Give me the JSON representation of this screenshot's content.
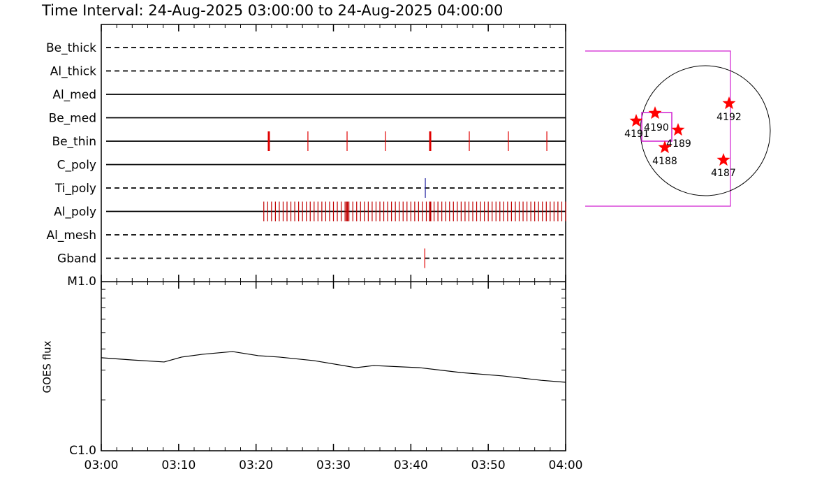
{
  "title": "Time Interval: 24-Aug-2025 03:00:00 to 24-Aug-2025 04:00:00",
  "chart_data": [
    {
      "type": "timeline",
      "xlim": [
        0,
        60
      ],
      "xticks": [
        0,
        10,
        20,
        30,
        40,
        50,
        60
      ],
      "minor_xticks": [
        2,
        4,
        6,
        8,
        12,
        14,
        16,
        18,
        22,
        24,
        26,
        28,
        32,
        34,
        36,
        38,
        42,
        44,
        46,
        48,
        52,
        54,
        56,
        58
      ],
      "rows": [
        {
          "name": "Be_thick",
          "style": "dashed",
          "color": "#000000",
          "events": [],
          "wide_events": []
        },
        {
          "name": "Al_thick",
          "style": "dashed",
          "color": "#000000",
          "events": [],
          "wide_events": []
        },
        {
          "name": "Al_med",
          "style": "solid",
          "color": "#000000",
          "events": [],
          "wide_events": []
        },
        {
          "name": "Be_med",
          "style": "solid",
          "color": "#000000",
          "events": [],
          "wide_events": []
        },
        {
          "name": "Be_thin",
          "style": "solid",
          "color": "#e00000",
          "events": [
            26.7,
            31.76,
            36.72,
            47.55,
            52.6,
            57.57
          ],
          "wide_events": [
            21.65,
            42.5
          ]
        },
        {
          "name": "C_poly",
          "style": "solid",
          "color": "#000000",
          "events": [],
          "wide_events": []
        },
        {
          "name": "Ti_poly",
          "style": "dashed",
          "color": "#2020a0",
          "events": [
            41.87
          ],
          "wide_events": []
        },
        {
          "name": "Al_poly",
          "style": "solid",
          "color": "#c00000",
          "events": [
            21,
            21.5,
            22,
            22.5,
            23,
            23.5,
            24,
            24.5,
            25,
            25.5,
            26,
            26.5,
            27,
            27.5,
            28,
            28.5,
            29,
            29.5,
            30,
            30.5,
            31,
            31.5,
            32,
            32.5,
            33,
            33.5,
            34,
            34.5,
            35,
            35.5,
            36,
            36.5,
            37,
            37.5,
            38,
            38.5,
            39,
            39.5,
            40,
            40.5,
            41,
            41.5,
            42,
            42.5,
            43,
            43.5,
            44,
            44.5,
            45,
            45.5,
            46,
            46.5,
            47,
            47.5,
            48,
            48.5,
            49,
            49.5,
            50,
            50.5,
            51,
            51.5,
            52,
            52.5,
            53,
            53.5,
            54,
            54.5,
            55,
            55.5,
            56,
            56.5,
            57,
            57.5,
            58,
            58.5,
            59,
            59.5,
            60
          ],
          "wide_events": [
            31.76,
            42.5
          ]
        },
        {
          "name": "Al_mesh",
          "style": "dashed",
          "color": "#000000",
          "events": [],
          "wide_events": []
        },
        {
          "name": "Gband",
          "style": "dashed",
          "color": "#e00000",
          "events": [
            41.8
          ],
          "wide_events": []
        }
      ]
    },
    {
      "type": "line",
      "log_y": true,
      "y_label": "GOES flux",
      "color": "#000000",
      "x": [
        0,
        4.06,
        8.12,
        10.38,
        13.08,
        16.96,
        20.3,
        23.0,
        27.5,
        32.9,
        35.2,
        41.1,
        46.5,
        51.9,
        56.85,
        60
      ],
      "values": [
        3.55e-06,
        3.44e-06,
        3.35e-06,
        3.58e-06,
        3.72e-06,
        3.86e-06,
        3.65e-06,
        3.58e-06,
        3.41e-06,
        3.1e-06,
        3.19e-06,
        3.1e-06,
        2.9e-06,
        2.77e-06,
        2.61e-06,
        2.54e-06
      ],
      "xlim": [
        0,
        60
      ],
      "xticks": [
        {
          "value": 0,
          "label": "03:00"
        },
        {
          "value": 10,
          "label": "03:10"
        },
        {
          "value": 20,
          "label": "03:20"
        },
        {
          "value": 30,
          "label": "03:30"
        },
        {
          "value": 40,
          "label": "03:40"
        },
        {
          "value": 50,
          "label": "03:50"
        },
        {
          "value": 60,
          "label": "04:00"
        }
      ],
      "minor_xticks": [
        2,
        4,
        6,
        8,
        12,
        14,
        16,
        18,
        22,
        24,
        26,
        28,
        32,
        34,
        36,
        38,
        42,
        44,
        46,
        48,
        52,
        54,
        56,
        58
      ],
      "ylim": [
        1e-06,
        1e-05
      ],
      "yticks": [
        {
          "value": 1e-06,
          "label": "C1.0"
        },
        {
          "value": 1e-05,
          "label": "M1.0"
        }
      ],
      "minor_yticks": [
        2e-06,
        3e-06,
        4e-06,
        5e-06,
        6e-06,
        7e-06,
        8e-06,
        9e-06
      ]
    }
  ],
  "sun": {
    "regions": [
      "4191",
      "4190",
      "4189",
      "4188",
      "4192",
      "4187"
    ]
  }
}
